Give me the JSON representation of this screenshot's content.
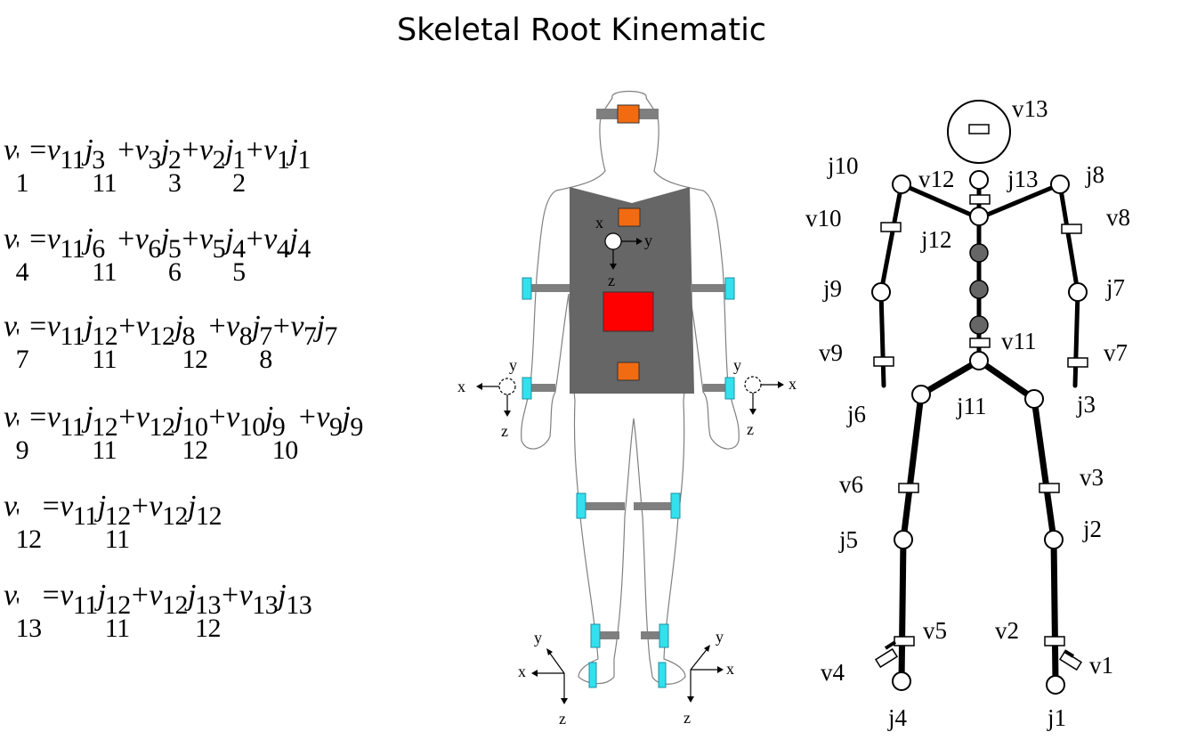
{
  "title": "Skeletal Root Kinematic",
  "equations": [
    [
      {
        "t": "v",
        "sup": "'",
        "sub": "1"
      },
      {
        "op": "="
      },
      {
        "t": "v",
        "sub": "11"
      },
      {
        "t": "j",
        "sup": "3",
        "sub": "11"
      },
      {
        "op": "+"
      },
      {
        "t": "v",
        "sub": "3"
      },
      {
        "t": "j",
        "sup": "2",
        "sub": "3"
      },
      {
        "op": "+"
      },
      {
        "t": "v",
        "sub": "2"
      },
      {
        "t": "j",
        "sup": "1",
        "sub": "2"
      },
      {
        "op": "+"
      },
      {
        "t": "v",
        "sub": "1"
      },
      {
        "t": "j",
        "sub": "1"
      }
    ],
    [
      {
        "t": "v",
        "sup": "'",
        "sub": "4"
      },
      {
        "op": "="
      },
      {
        "t": "v",
        "sub": "11"
      },
      {
        "t": "j",
        "sup": "6",
        "sub": "11"
      },
      {
        "op": "+"
      },
      {
        "t": "v",
        "sub": "6"
      },
      {
        "t": "j",
        "sup": "5",
        "sub": "6"
      },
      {
        "op": "+"
      },
      {
        "t": "v",
        "sub": "5"
      },
      {
        "t": "j",
        "sup": "4",
        "sub": "5"
      },
      {
        "op": "+"
      },
      {
        "t": "v",
        "sub": "4"
      },
      {
        "t": "j",
        "sub": "4"
      }
    ],
    [
      {
        "t": "v",
        "sup": "'",
        "sub": "7"
      },
      {
        "op": "="
      },
      {
        "t": "v",
        "sub": "11"
      },
      {
        "t": "j",
        "sup": "12",
        "sub": "11"
      },
      {
        "op": "+"
      },
      {
        "t": "v",
        "sub": "12"
      },
      {
        "t": "j",
        "sup": "8",
        "sub": "12"
      },
      {
        "op": "+"
      },
      {
        "t": "v",
        "sub": "8"
      },
      {
        "t": "j",
        "sup": "7",
        "sub": "8"
      },
      {
        "op": "+"
      },
      {
        "t": "v",
        "sub": "7"
      },
      {
        "t": "j",
        "sub": "7"
      }
    ],
    [
      {
        "t": "v",
        "sup": "'",
        "sub": "9"
      },
      {
        "op": "="
      },
      {
        "t": "v",
        "sub": "11"
      },
      {
        "t": "j",
        "sup": "12",
        "sub": "11"
      },
      {
        "op": "+"
      },
      {
        "t": "v",
        "sub": "12"
      },
      {
        "t": "j",
        "sup": "10",
        "sub": "12"
      },
      {
        "op": "+"
      },
      {
        "t": "v",
        "sub": "10"
      },
      {
        "t": "j",
        "sup": "9",
        "sub": "10"
      },
      {
        "op": "+"
      },
      {
        "t": "v",
        "sub": "9"
      },
      {
        "t": "j",
        "sub": "9"
      }
    ],
    [
      {
        "t": "v",
        "sup": "'",
        "sub": "12"
      },
      {
        "op": "="
      },
      {
        "t": "v",
        "sub": "11"
      },
      {
        "t": "j",
        "sup": "12",
        "sub": "11"
      },
      {
        "op": "+"
      },
      {
        "t": "v",
        "sub": "12"
      },
      {
        "t": "j",
        "sub": "12"
      }
    ],
    [
      {
        "t": "v",
        "sup": "'",
        "sub": "13"
      },
      {
        "op": "="
      },
      {
        "t": "v",
        "sub": "11"
      },
      {
        "t": "j",
        "sup": "12",
        "sub": "11"
      },
      {
        "op": "+"
      },
      {
        "t": "v",
        "sub": "12"
      },
      {
        "t": "j",
        "sup": "13",
        "sub": "12"
      },
      {
        "op": "+"
      },
      {
        "t": "v",
        "sub": "13"
      },
      {
        "t": "j",
        "sub": "13"
      }
    ]
  ],
  "body_axes": {
    "x": "x",
    "y": "y",
    "z": "z"
  },
  "skeleton": {
    "joints": {
      "j1": "j1",
      "j2": "j2",
      "j3": "j3",
      "j4": "j4",
      "j5": "j5",
      "j6": "j6",
      "j7": "j7",
      "j8": "j8",
      "j9": "j9",
      "j10": "j10",
      "j11": "j11",
      "j12": "j12",
      "j13": "j13"
    },
    "sensors": {
      "v1": "v1",
      "v2": "v2",
      "v3": "v3",
      "v4": "v4",
      "v5": "v5",
      "v6": "v6",
      "v7": "v7",
      "v8": "v8",
      "v9": "v9",
      "v10": "v10",
      "v11": "v11",
      "v12": "v12",
      "v13": "v13"
    }
  },
  "colors": {
    "vest": "#666666",
    "sensor_orange": "#f26b10",
    "sensor_red": "#ff0000",
    "sensor_cyan": "#33e0ee",
    "strap": "#7f7f7f",
    "skeleton_bone": "#000000",
    "spine_joint": "#666666"
  }
}
